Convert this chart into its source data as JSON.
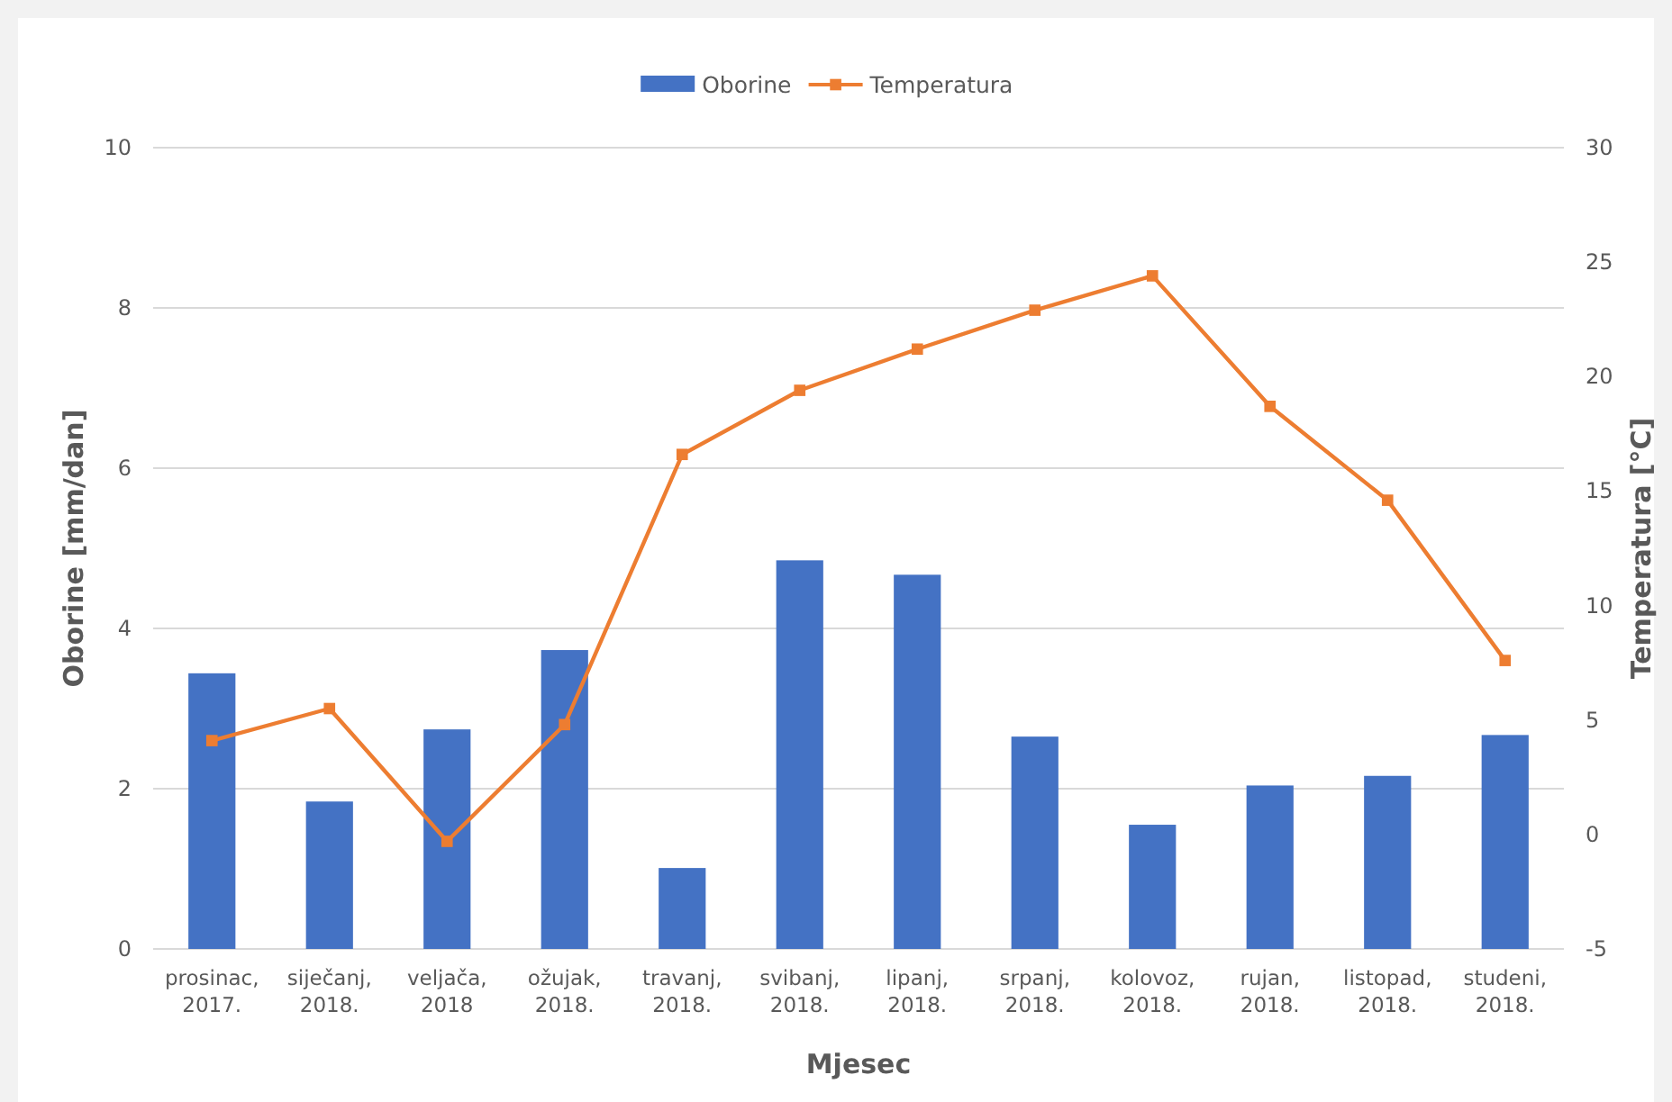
{
  "chart_data": {
    "type": "bar",
    "xlabel": "Mjesec",
    "ylabel": "Oborine [mm/dan]",
    "y2label": "Temperatura [°C]",
    "categories": [
      "prosinac, 2017.",
      "siječanj, 2018.",
      "veljača, 2018",
      "ožujak, 2018.",
      "travanj, 2018.",
      "svibanj, 2018.",
      "lipanj, 2018.",
      "srpanj, 2018.",
      "kolovoz, 2018.",
      "rujan, 2018.",
      "listopad, 2018.",
      "studeni, 2018."
    ],
    "series": [
      {
        "name": "Oborine",
        "color": "#4472c4",
        "values": [
          3.44,
          1.84,
          2.74,
          3.73,
          1.01,
          4.85,
          4.67,
          2.65,
          1.55,
          2.04,
          2.16,
          2.67
        ]
      },
      {
        "name": "Temperatura",
        "type": "line",
        "axis": "y2",
        "color": "#ed7d31",
        "values": [
          4.1,
          5.5,
          -0.3,
          4.8,
          16.6,
          19.4,
          21.2,
          22.9,
          24.4,
          18.7,
          14.6,
          7.6
        ]
      }
    ],
    "ylim": [
      0,
      10
    ],
    "yticks": [
      0,
      2,
      4,
      6,
      8,
      10
    ],
    "y2lim": [
      -5,
      30
    ],
    "y2ticks": [
      -5,
      0,
      5,
      10,
      15,
      20,
      25,
      30
    ],
    "grid": "y",
    "legend": "top",
    "marker": "square"
  }
}
